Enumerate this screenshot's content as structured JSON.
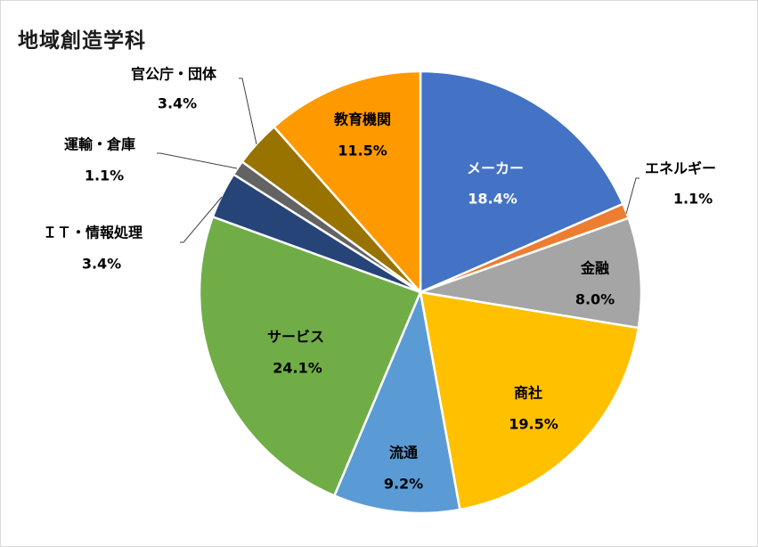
{
  "chart_data": {
    "type": "pie",
    "title": "地域創造学科",
    "unit": "%",
    "slices": [
      {
        "name": "メーカー",
        "value": 18.4,
        "label": "18.4%",
        "color": "#4472C4",
        "label_color": "#ffffff",
        "outside": false
      },
      {
        "name": "エネルギー",
        "value": 1.1,
        "label": "1.1%",
        "color": "#ED7D31",
        "label_color": "#000000",
        "outside": true
      },
      {
        "name": "金融",
        "value": 8.0,
        "label": "8.0%",
        "color": "#A5A5A5",
        "label_color": "#000000",
        "outside": false
      },
      {
        "name": "商社",
        "value": 19.5,
        "label": "19.5%",
        "color": "#FFC000",
        "label_color": "#000000",
        "outside": false
      },
      {
        "name": "流通",
        "value": 9.2,
        "label": "9.2%",
        "color": "#5B9BD5",
        "label_color": "#000000",
        "outside": false
      },
      {
        "name": "サービス",
        "value": 24.1,
        "label": "24.1%",
        "color": "#70AD47",
        "label_color": "#000000",
        "outside": false
      },
      {
        "name": "ＩＴ・情報処理",
        "value": 3.4,
        "label": "3.4%",
        "color": "#264478",
        "label_color": "#000000",
        "outside": true
      },
      {
        "name": "運輸・倉庫",
        "value": 1.1,
        "label": "1.1%",
        "color": "#636363",
        "label_color": "#000000",
        "outside": true
      },
      {
        "name": "官公庁・団体",
        "value": 3.4,
        "label": "3.4%",
        "color": "#997300",
        "label_color": "#000000",
        "outside": true
      },
      {
        "name": "教育機関",
        "value": 11.5,
        "label": "11.5%",
        "color": "#FF9900",
        "label_color": "#000000",
        "outside": false
      }
    ]
  }
}
